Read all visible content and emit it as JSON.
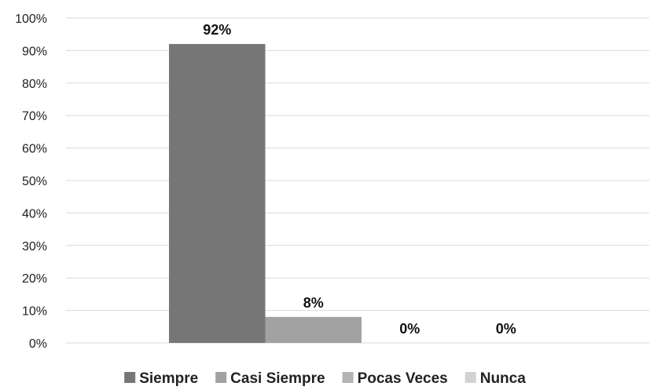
{
  "chart_data": {
    "type": "bar",
    "title": "",
    "xlabel": "",
    "ylabel": "",
    "ylim": [
      0,
      100
    ],
    "y_ticks": [
      "0%",
      "10%",
      "20%",
      "30%",
      "40%",
      "50%",
      "60%",
      "70%",
      "80%",
      "90%",
      "100%"
    ],
    "grid": true,
    "legend_position": "bottom",
    "series": [
      {
        "name": "Siempre",
        "value": 92,
        "label": "92%",
        "color": "#767676"
      },
      {
        "name": "Casi Siempre",
        "value": 8,
        "label": "8%",
        "color": "#a2a2a2"
      },
      {
        "name": "Pocas Veces",
        "value": 0,
        "label": "0%",
        "color": "#b3b3b3"
      },
      {
        "name": "Nunca",
        "value": 0,
        "label": "0%",
        "color": "#d2d2d2"
      }
    ]
  }
}
